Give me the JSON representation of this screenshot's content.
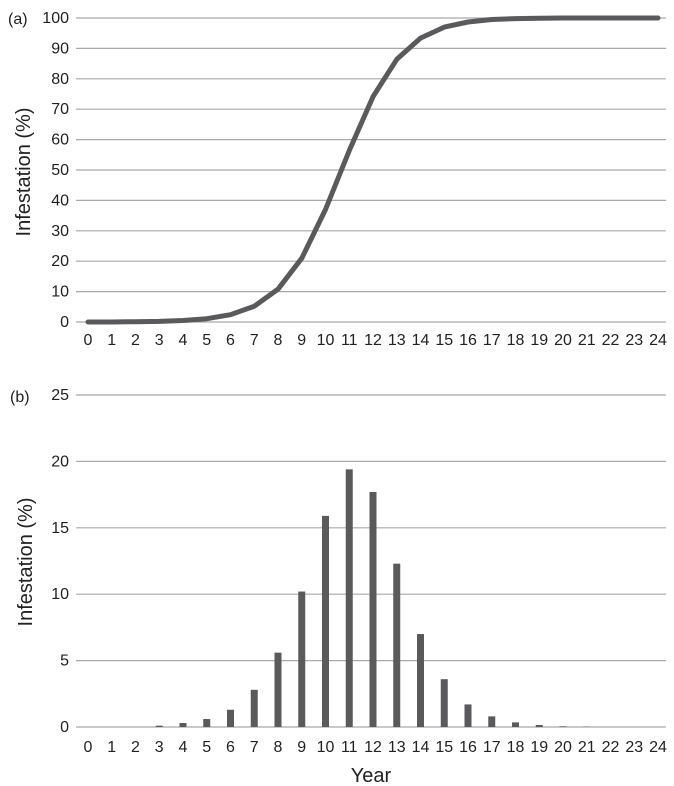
{
  "chart_data": [
    {
      "panel_label": "(a)",
      "type": "line",
      "xlabel": "",
      "ylabel": "Infestation (%)",
      "x": [
        0,
        1,
        2,
        3,
        4,
        5,
        6,
        7,
        8,
        9,
        10,
        11,
        12,
        13,
        14,
        15,
        16,
        17,
        18,
        19,
        20,
        21,
        22,
        23,
        24
      ],
      "xticks": [
        "0",
        "1",
        "2",
        "3",
        "4",
        "5",
        "6",
        "7",
        "8",
        "9",
        "10",
        "11",
        "12",
        "13",
        "14",
        "15",
        "16",
        "17",
        "18",
        "19",
        "20",
        "21",
        "22",
        "23",
        "24"
      ],
      "yticks": [
        "0",
        "10",
        "20",
        "30",
        "40",
        "50",
        "60",
        "70",
        "80",
        "90",
        "100"
      ],
      "ylim": [
        0,
        100
      ],
      "grid": true,
      "color": "#5a5a5c",
      "series": [
        {
          "values": [
            0,
            0,
            0.1,
            0.2,
            0.5,
            1.1,
            2.4,
            5.2,
            10.8,
            21,
            37,
            56.4,
            74.1,
            86.4,
            93.4,
            97.0,
            98.7,
            99.5,
            99.8,
            99.9,
            100,
            100,
            100,
            100,
            100
          ]
        }
      ]
    },
    {
      "panel_label": "(b)",
      "type": "bar",
      "xlabel": "Year",
      "ylabel": "Infestation (%)",
      "x": [
        0,
        1,
        2,
        3,
        4,
        5,
        6,
        7,
        8,
        9,
        10,
        11,
        12,
        13,
        14,
        15,
        16,
        17,
        18,
        19,
        20,
        21,
        22,
        23,
        24
      ],
      "xticks": [
        "0",
        "1",
        "2",
        "3",
        "4",
        "5",
        "6",
        "7",
        "8",
        "9",
        "10",
        "11",
        "12",
        "13",
        "14",
        "15",
        "16",
        "17",
        "18",
        "19",
        "20",
        "21",
        "22",
        "23",
        "24"
      ],
      "yticks": [
        "0",
        "5",
        "10",
        "15",
        "20",
        "25"
      ],
      "ylim": [
        0,
        25
      ],
      "grid": true,
      "color": "#5a5a5c",
      "series": [
        {
          "values": [
            0,
            0,
            0,
            0.1,
            0.3,
            0.6,
            1.3,
            2.8,
            5.6,
            10.2,
            15.9,
            19.4,
            17.7,
            12.3,
            7.0,
            3.6,
            1.7,
            0.8,
            0.35,
            0.15,
            0.05,
            0.02,
            0,
            0,
            0
          ]
        }
      ]
    }
  ]
}
